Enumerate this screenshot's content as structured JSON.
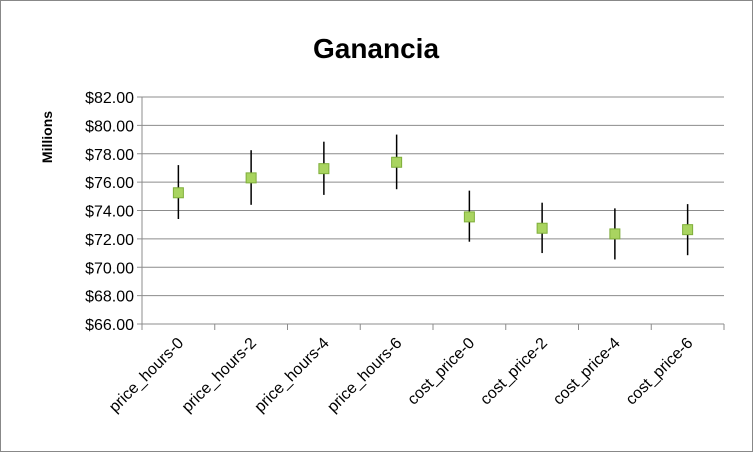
{
  "chart_data": {
    "type": "scatter",
    "title": "Ganancia",
    "xlabel": "",
    "ylabel": "Millions",
    "ylim": [
      66,
      82
    ],
    "yticks": [
      "$66.00",
      "$68.00",
      "$70.00",
      "$72.00",
      "$74.00",
      "$76.00",
      "$78.00",
      "$80.00",
      "$82.00"
    ],
    "ytick_values": [
      66,
      68,
      70,
      72,
      74,
      76,
      78,
      80,
      82
    ],
    "categories": [
      "price_hours-0",
      "price_hours-2",
      "price_hours-4",
      "price_hours-6",
      "cost_price-0",
      "cost_price-2",
      "cost_price-4",
      "cost_price-6"
    ],
    "values": [
      75.25,
      76.3,
      76.95,
      77.4,
      73.55,
      72.75,
      72.35,
      72.65
    ],
    "error_low": [
      73.4,
      74.4,
      75.1,
      75.5,
      71.8,
      71.0,
      70.55,
      70.85
    ],
    "error_high": [
      77.2,
      78.25,
      78.85,
      79.35,
      75.4,
      74.55,
      74.15,
      74.45
    ],
    "grid": true,
    "marker_color": "#a9d460",
    "marker_edge_color": "#7fae3a"
  }
}
